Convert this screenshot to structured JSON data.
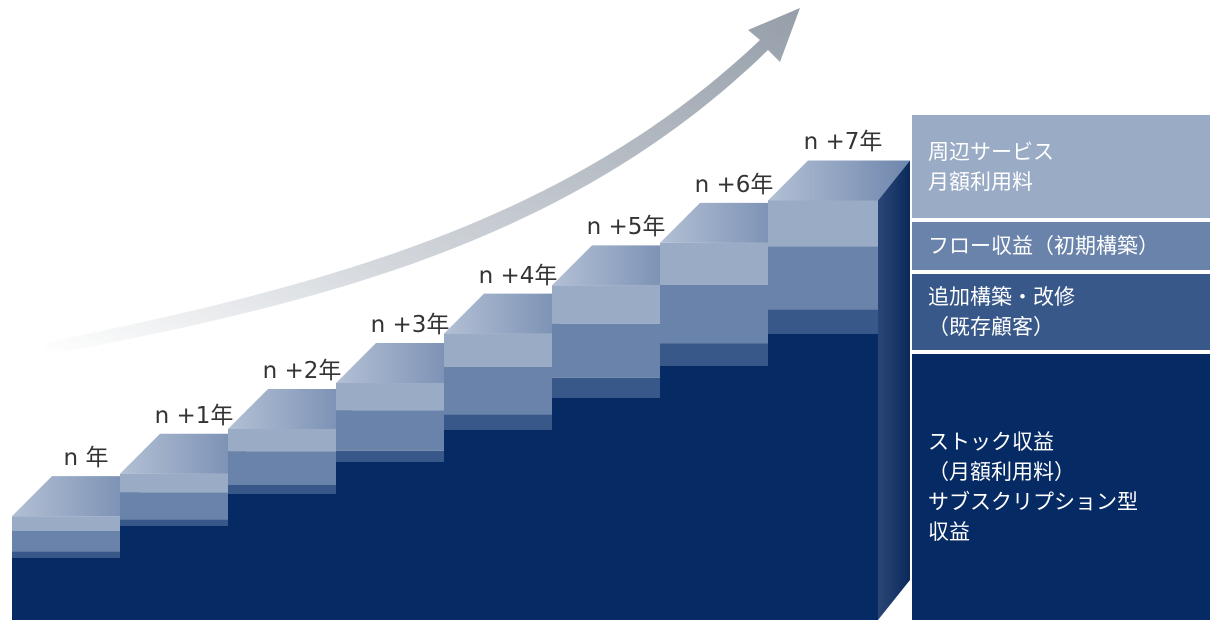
{
  "colors": {
    "stock": "#062a63",
    "add": "#375889",
    "flow": "#6a83aa",
    "service": "#9aabc5",
    "top_face": "#8a9cbc",
    "arrow": "#a5acb5"
  },
  "steps": [
    {
      "label": "n 年",
      "layers": [
        1,
        0.15,
        0.45,
        0.6
      ]
    },
    {
      "label": "n +1年",
      "layers": [
        2,
        0.15,
        0.6,
        0.75
      ]
    },
    {
      "label": "n +2年",
      "layers": [
        3,
        0.2,
        0.75,
        0.9
      ]
    },
    {
      "label": "n +3年",
      "layers": [
        4,
        0.25,
        0.9,
        1.1
      ]
    },
    {
      "label": "n +4年",
      "layers": [
        5,
        0.35,
        1.05,
        1.35
      ]
    },
    {
      "label": "n +5年",
      "layers": [
        6,
        0.45,
        1.2,
        1.55
      ]
    },
    {
      "label": "n +6年",
      "layers": [
        7,
        0.5,
        1.3,
        1.7
      ]
    },
    {
      "label": "n +7年",
      "layers": [
        8,
        0.55,
        1.4,
        1.85
      ]
    }
  ],
  "legend": {
    "service": [
      "周辺サービス",
      "月額利用料"
    ],
    "flow": [
      "フロー収益（初期構築）"
    ],
    "add": [
      "追加構築・改修",
      "（既存顧客）"
    ],
    "stock": [
      "ストック収益",
      "（月額利用料）",
      "サブスクリプション型",
      "収益"
    ]
  }
}
